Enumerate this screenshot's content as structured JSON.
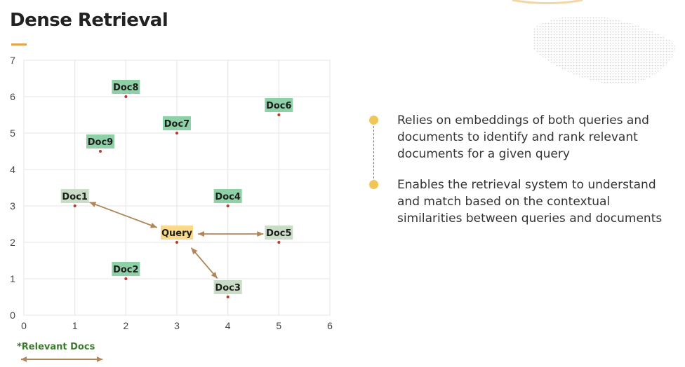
{
  "header": {
    "title": "Dense Retrieval"
  },
  "bullets": [
    {
      "text": "Relies on embeddings of both queries and documents to identify and rank relevant documents for a given query"
    },
    {
      "text": "Enables the retrieval system to understand and match based on the contextual similarities between queries and documents"
    }
  ],
  "legend": {
    "label": "*Relevant Docs"
  },
  "colors": {
    "doc_green": "#8fd1a6",
    "relevant_doc": "#c9dcc5",
    "query_yellow": "#fbd98a",
    "arrow": "#b0855a",
    "point": "#b83a2a",
    "accent": "#e3a64a",
    "bullet_dot": "#f0c654"
  },
  "chart_data": {
    "type": "scatter",
    "title": "",
    "xlabel": "",
    "ylabel": "",
    "xlim": [
      0,
      6
    ],
    "ylim": [
      0,
      7
    ],
    "xticks": [
      0,
      1,
      2,
      3,
      4,
      5,
      6
    ],
    "yticks": [
      0,
      1,
      2,
      3,
      4,
      5,
      6,
      7
    ],
    "grid": true,
    "points": [
      {
        "label": "Doc1",
        "x": 1,
        "y": 3,
        "kind": "relevant"
      },
      {
        "label": "Doc2",
        "x": 2,
        "y": 1,
        "kind": "doc"
      },
      {
        "label": "Doc3",
        "x": 4,
        "y": 0.5,
        "kind": "relevant"
      },
      {
        "label": "Doc4",
        "x": 4,
        "y": 3,
        "kind": "doc"
      },
      {
        "label": "Doc5",
        "x": 5,
        "y": 2,
        "kind": "relevant"
      },
      {
        "label": "Doc6",
        "x": 5,
        "y": 5.5,
        "kind": "doc"
      },
      {
        "label": "Doc7",
        "x": 3,
        "y": 5,
        "kind": "doc"
      },
      {
        "label": "Doc8",
        "x": 2,
        "y": 6,
        "kind": "doc"
      },
      {
        "label": "Doc9",
        "x": 1.5,
        "y": 4.5,
        "kind": "doc"
      },
      {
        "label": "Query",
        "x": 3,
        "y": 2,
        "kind": "query"
      }
    ],
    "arrows": [
      {
        "from": "Query",
        "to": "Doc1"
      },
      {
        "from": "Query",
        "to": "Doc5"
      },
      {
        "from": "Query",
        "to": "Doc3"
      }
    ]
  }
}
